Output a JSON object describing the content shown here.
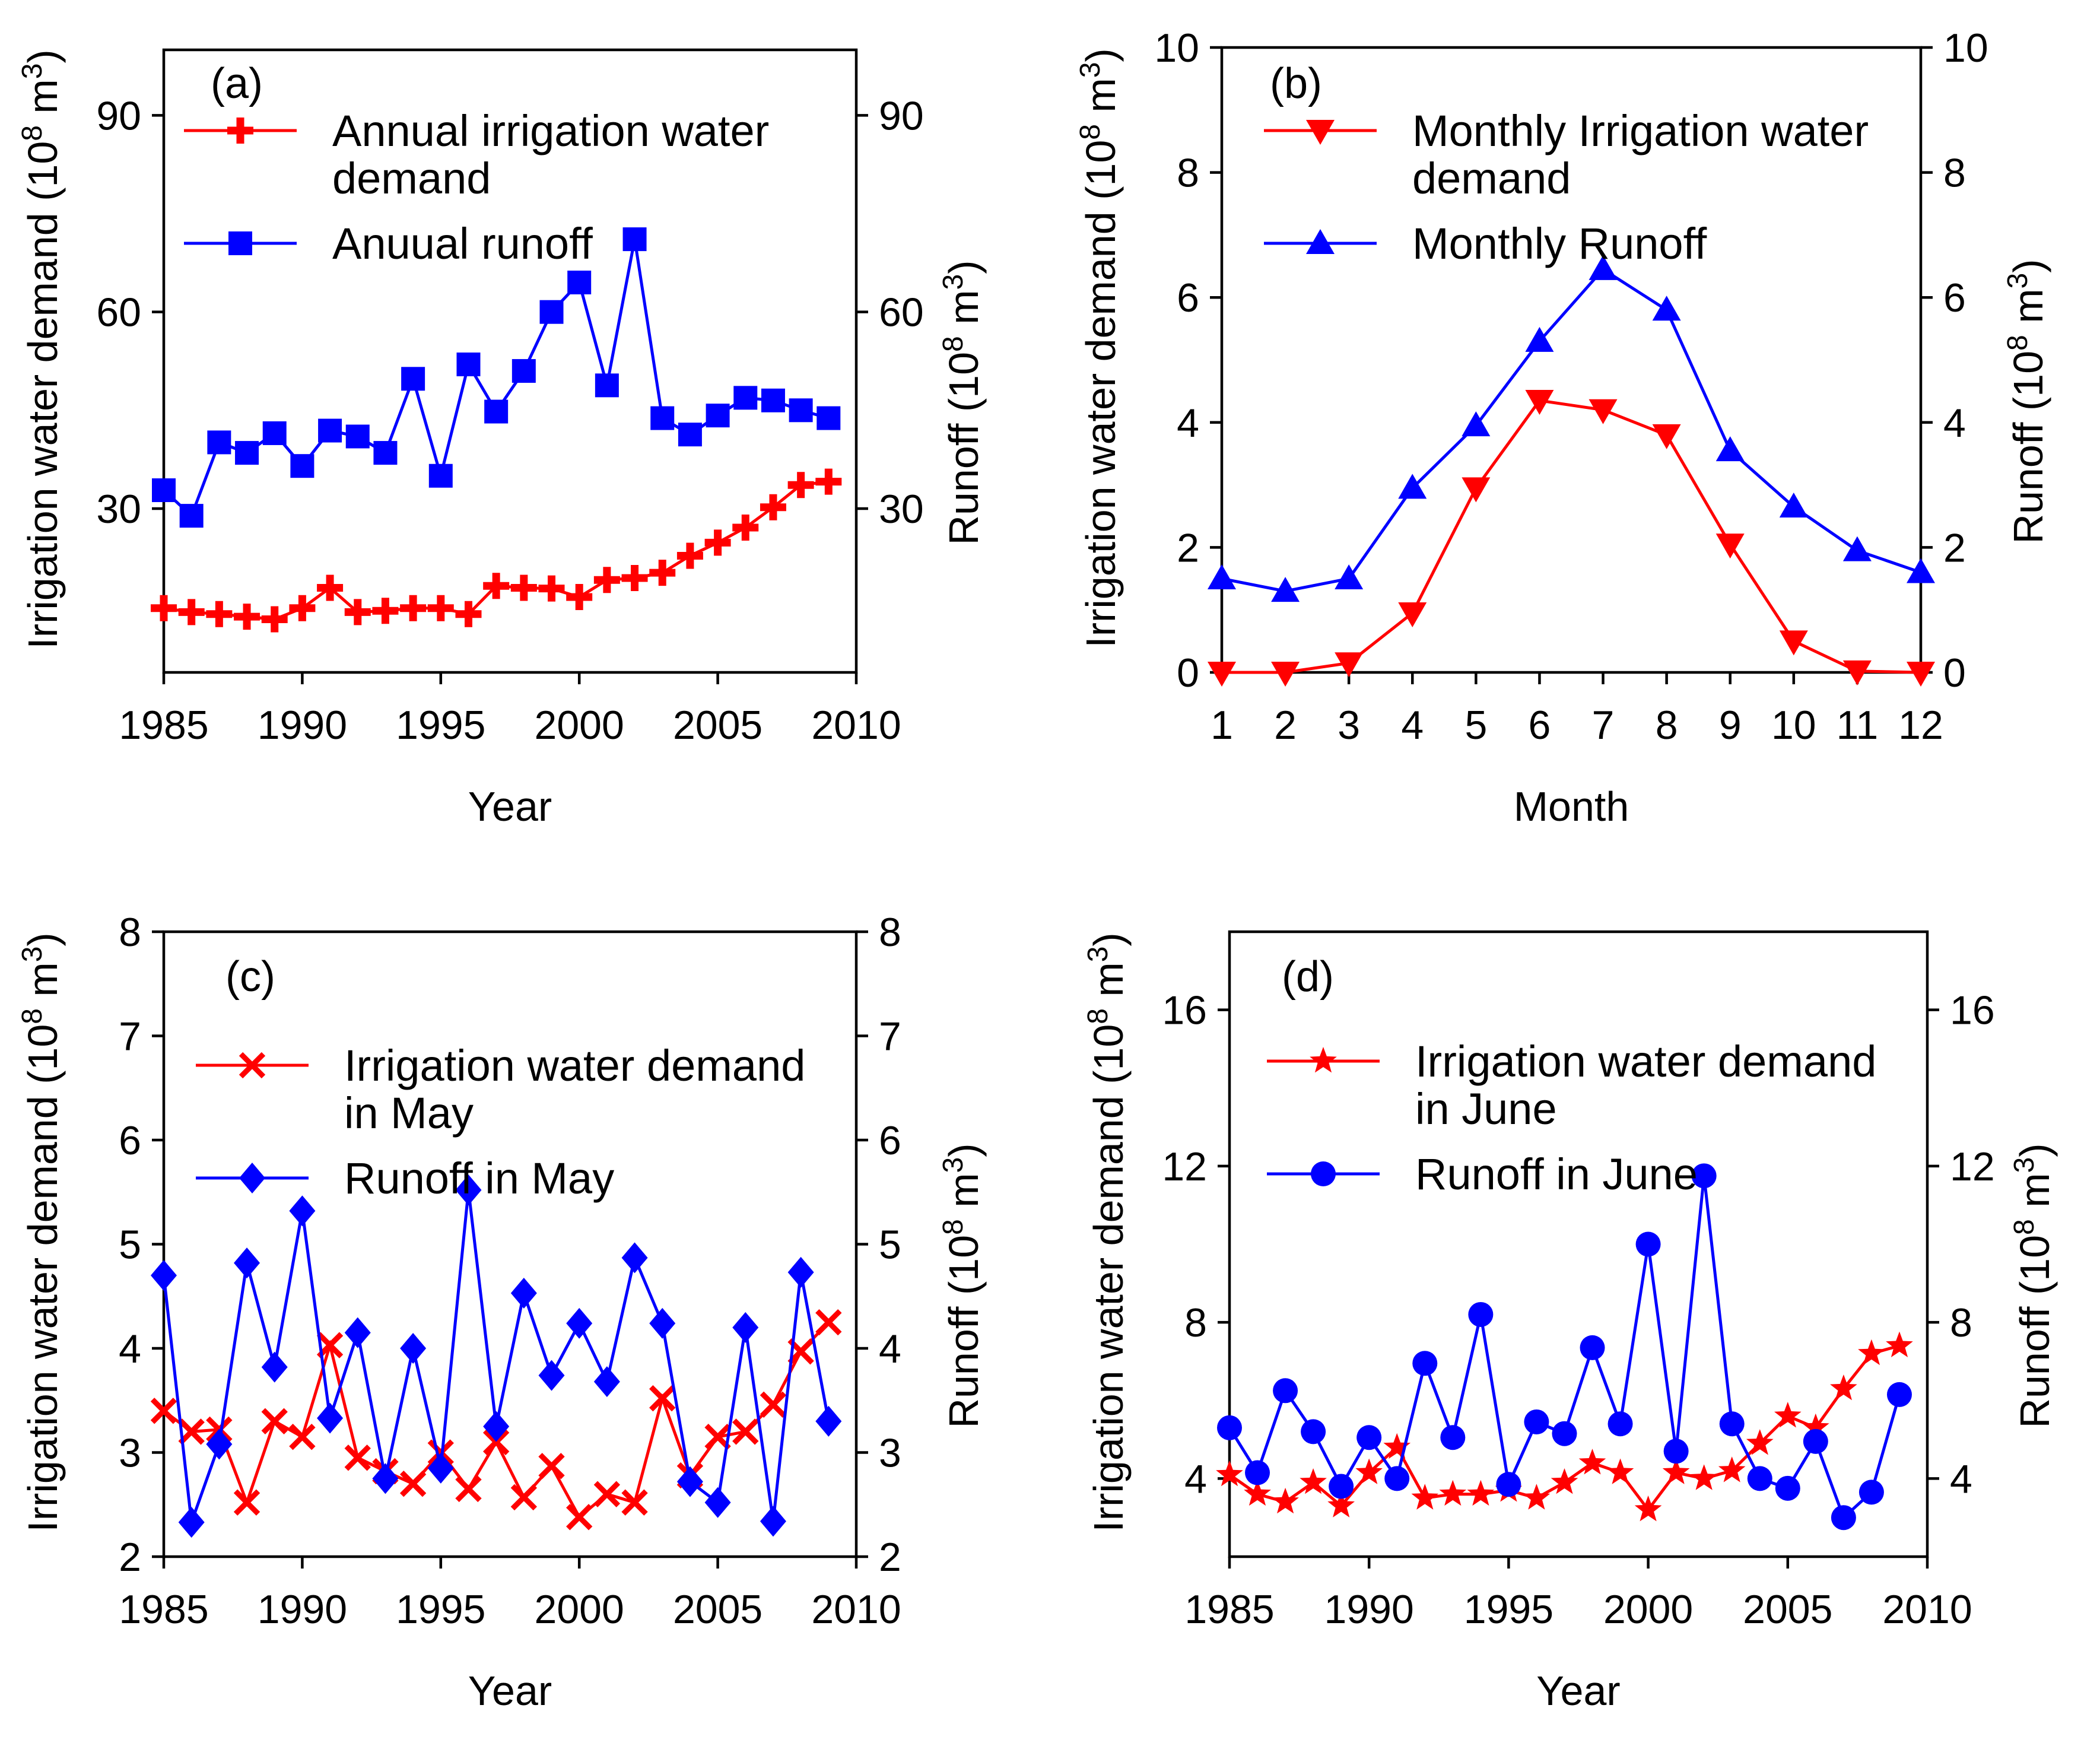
{
  "chart_data": [
    {
      "panel": "(a)",
      "type": "line",
      "xlabel": "Year",
      "ylabel": "Irrigation water demand (10",
      "ylabel_sup": "8",
      "ylabel_tail": " m",
      "ylabel_sup2": "3",
      "ylabel_end": ")",
      "y2label": "Runoff (10",
      "y2label_sup": "8",
      "y2label_tail": " m",
      "y2label_sup2": "3",
      "y2label_end": ")",
      "xlim": [
        1985,
        2010
      ],
      "ylim": [
        5,
        100
      ],
      "xticks": [
        1985,
        1990,
        1995,
        2000,
        2005,
        2010
      ],
      "yticks": [
        30,
        60,
        90
      ],
      "x": [
        1985,
        1986,
        1987,
        1988,
        1989,
        1990,
        1991,
        1992,
        1993,
        1994,
        1995,
        1996,
        1997,
        1998,
        1999,
        2000,
        2001,
        2002,
        2003,
        2004,
        2005,
        2006,
        2007,
        2008,
        2009
      ],
      "series": [
        {
          "name": "Annual irrigation water",
          "name2": "demand",
          "color": "#ff0000",
          "marker": "plus",
          "values": [
            14.8,
            14.2,
            13.9,
            13.5,
            13.1,
            14.8,
            17.9,
            14.2,
            14.4,
            14.8,
            14.8,
            13.9,
            18.2,
            17.9,
            17.8,
            16.5,
            19.1,
            19.4,
            20.2,
            22.8,
            24.8,
            27.1,
            30.2,
            33.6,
            34.1
          ]
        },
        {
          "name": "Anuual runoff",
          "color": "#0000ff",
          "marker": "square",
          "values": [
            32.8,
            28.9,
            40.1,
            38.5,
            41.5,
            36.5,
            41.9,
            41.0,
            38.5,
            49.8,
            35.0,
            52.0,
            44.8,
            51.0,
            60.0,
            64.5,
            48.8,
            71.1,
            43.8,
            41.3,
            44.2,
            46.9,
            46.5,
            45.0,
            43.8
          ]
        }
      ]
    },
    {
      "panel": "(b)",
      "type": "line",
      "xlabel": "Month",
      "ylabel": "Irrigation water demand (10",
      "ylabel_sup": "8",
      "ylabel_tail": " m",
      "ylabel_sup2": "3",
      "ylabel_end": ")",
      "y2label": "Runoff (10",
      "y2label_sup": "8",
      "y2label_tail": " m",
      "y2label_sup2": "3",
      "y2label_end": ")",
      "xlim": [
        1,
        12
      ],
      "ylim": [
        0,
        10
      ],
      "xticks": [
        1,
        2,
        3,
        4,
        5,
        6,
        7,
        8,
        9,
        10,
        11,
        12
      ],
      "yticks": [
        0,
        2,
        4,
        6,
        8,
        10
      ],
      "x": [
        1,
        2,
        3,
        4,
        5,
        6,
        7,
        8,
        9,
        10,
        11,
        12
      ],
      "series": [
        {
          "name": "Monthly Irrigation water",
          "name2": "demand",
          "color": "#ff0000",
          "marker": "triangle-down",
          "values": [
            0,
            0,
            0.15,
            0.95,
            2.95,
            4.35,
            4.2,
            3.8,
            2.05,
            0.5,
            0.02,
            0
          ]
        },
        {
          "name": "Monthly Runoff",
          "color": "#0000ff",
          "marker": "triangle-up",
          "values": [
            1.5,
            1.3,
            1.5,
            2.95,
            3.95,
            5.3,
            6.45,
            5.8,
            3.55,
            2.65,
            1.95,
            1.6
          ]
        }
      ]
    },
    {
      "panel": "(c)",
      "type": "line",
      "xlabel": "Year",
      "ylabel": "Irrigation water demand (10",
      "ylabel_sup": "8",
      "ylabel_tail": " m",
      "ylabel_sup2": "3",
      "ylabel_end": ")",
      "y2label": "Runoff (10",
      "y2label_sup": "8",
      "y2label_tail": " m",
      "y2label_sup2": "3",
      "y2label_end": ")",
      "xlim": [
        1985,
        2010
      ],
      "ylim": [
        2,
        8
      ],
      "xticks": [
        1985,
        1990,
        1995,
        2000,
        2005,
        2010
      ],
      "yticks": [
        2,
        3,
        4,
        5,
        6,
        7,
        8
      ],
      "x": [
        1985,
        1986,
        1987,
        1988,
        1989,
        1990,
        1991,
        1992,
        1993,
        1994,
        1995,
        1996,
        1997,
        1998,
        1999,
        2000,
        2001,
        2002,
        2003,
        2004,
        2005,
        2006,
        2007,
        2008,
        2009
      ],
      "series": [
        {
          "name": "Irrigation water demand",
          "name2": "in May",
          "color": "#ff0000",
          "marker": "x",
          "values": [
            3.4,
            3.2,
            3.22,
            2.52,
            3.3,
            3.15,
            4.03,
            2.95,
            2.82,
            2.7,
            3.0,
            2.65,
            3.1,
            2.57,
            2.87,
            2.38,
            2.6,
            2.52,
            3.52,
            2.78,
            3.15,
            3.2,
            3.46,
            3.97,
            4.25
          ]
        },
        {
          "name": "Runoff in May",
          "color": "#0000ff",
          "marker": "diamond",
          "values": [
            4.7,
            2.33,
            3.08,
            4.82,
            3.82,
            5.32,
            3.33,
            4.15,
            2.75,
            4.0,
            2.85,
            5.52,
            3.25,
            4.53,
            3.74,
            4.24,
            3.68,
            4.87,
            4.24,
            2.72,
            2.52,
            4.2,
            2.34,
            4.73,
            3.3
          ]
        }
      ]
    },
    {
      "panel": "(d)",
      "type": "line",
      "xlabel": "Year",
      "ylabel": "Irrigation water demand (10",
      "ylabel_sup": "8",
      "ylabel_tail": " m",
      "ylabel_sup2": "3",
      "ylabel_end": ")",
      "y2label": "Runoff (10",
      "y2label_sup": "8",
      "y2label_tail": " m",
      "y2label_sup2": "3",
      "y2label_end": ")",
      "xlim": [
        1985,
        2010
      ],
      "ylim": [
        2,
        18
      ],
      "xticks": [
        1985,
        1990,
        1995,
        2000,
        2005,
        2010
      ],
      "yticks": [
        4,
        8,
        12,
        16
      ],
      "x": [
        1985,
        1986,
        1987,
        1988,
        1989,
        1990,
        1991,
        1992,
        1993,
        1994,
        1995,
        1996,
        1997,
        1998,
        1999,
        2000,
        2001,
        2002,
        2003,
        2004,
        2005,
        2006,
        2007,
        2008,
        2009
      ],
      "series": [
        {
          "name": "Irrigation water demand",
          "name2": "in June",
          "color": "#ff0000",
          "marker": "star",
          "values": [
            4.1,
            3.6,
            3.4,
            3.9,
            3.3,
            4.15,
            4.8,
            3.5,
            3.6,
            3.6,
            3.7,
            3.5,
            3.9,
            4.4,
            4.15,
            3.2,
            4.15,
            4.0,
            4.2,
            4.9,
            5.6,
            5.3,
            6.3,
            7.2,
            7.4
          ]
        },
        {
          "name": "Runoff in June",
          "color": "#0000ff",
          "marker": "circle",
          "values": [
            5.3,
            4.15,
            6.25,
            5.2,
            3.8,
            5.05,
            4.0,
            6.95,
            5.05,
            8.2,
            3.85,
            5.45,
            5.15,
            7.35,
            5.4,
            10.0,
            4.7,
            11.75,
            5.4,
            4.0,
            3.75,
            4.95,
            3.0,
            3.65,
            6.15
          ]
        }
      ]
    }
  ]
}
